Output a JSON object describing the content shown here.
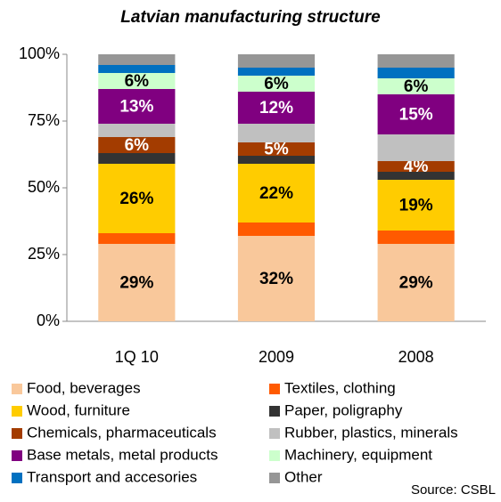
{
  "chart_data": {
    "type": "stacked_bar",
    "title": "Latvian manufacturing structure",
    "source": "Source: CSBL",
    "categories": [
      "1Q 10",
      "2009",
      "2008"
    ],
    "ylim": [
      0,
      100
    ],
    "yticks": [
      {
        "value": 0,
        "label": "0%"
      },
      {
        "value": 25,
        "label": "25%"
      },
      {
        "value": 50,
        "label": "50%"
      },
      {
        "value": 75,
        "label": "75%"
      },
      {
        "value": 100,
        "label": "100%"
      }
    ],
    "grid": false,
    "series": [
      {
        "name": "Food, beverages",
        "color": "#f9c89b",
        "values": [
          29,
          32,
          29
        ],
        "value_labels": [
          "29%",
          "32%",
          "29%"
        ]
      },
      {
        "name": "Textiles, clothing",
        "color": "#ff5a00",
        "values": [
          4,
          5,
          5
        ]
      },
      {
        "name": "Wood, furniture",
        "color": "#ffcc00",
        "values": [
          26,
          22,
          19
        ],
        "value_labels": [
          "26%",
          "22%",
          "19%"
        ]
      },
      {
        "name": "Paper, poligraphy",
        "color": "#333333",
        "values": [
          4,
          3,
          3
        ]
      },
      {
        "name": "Chemicals, pharmaceuticals",
        "color": "#a33c00",
        "values": [
          6,
          5,
          4
        ],
        "value_labels": [
          "6%",
          "5%",
          "4%"
        ]
      },
      {
        "name": "Rubber, plastics, minerals",
        "color": "#c0c0c0",
        "values": [
          5,
          7,
          10
        ]
      },
      {
        "name": "Base metals, metal products",
        "color": "#800080",
        "values": [
          13,
          12,
          15
        ],
        "value_labels": [
          "13%",
          "12%",
          "15%"
        ]
      },
      {
        "name": "Machinery, equipment",
        "color": "#ccffcc",
        "values": [
          6,
          6,
          6
        ],
        "value_labels": [
          "6%",
          "6%",
          "6%"
        ]
      },
      {
        "name": "Transport and accesories",
        "color": "#0070c0",
        "values": [
          3,
          3,
          4
        ]
      },
      {
        "name": "Other",
        "color": "#969696",
        "values": [
          4,
          5,
          5
        ]
      }
    ]
  }
}
